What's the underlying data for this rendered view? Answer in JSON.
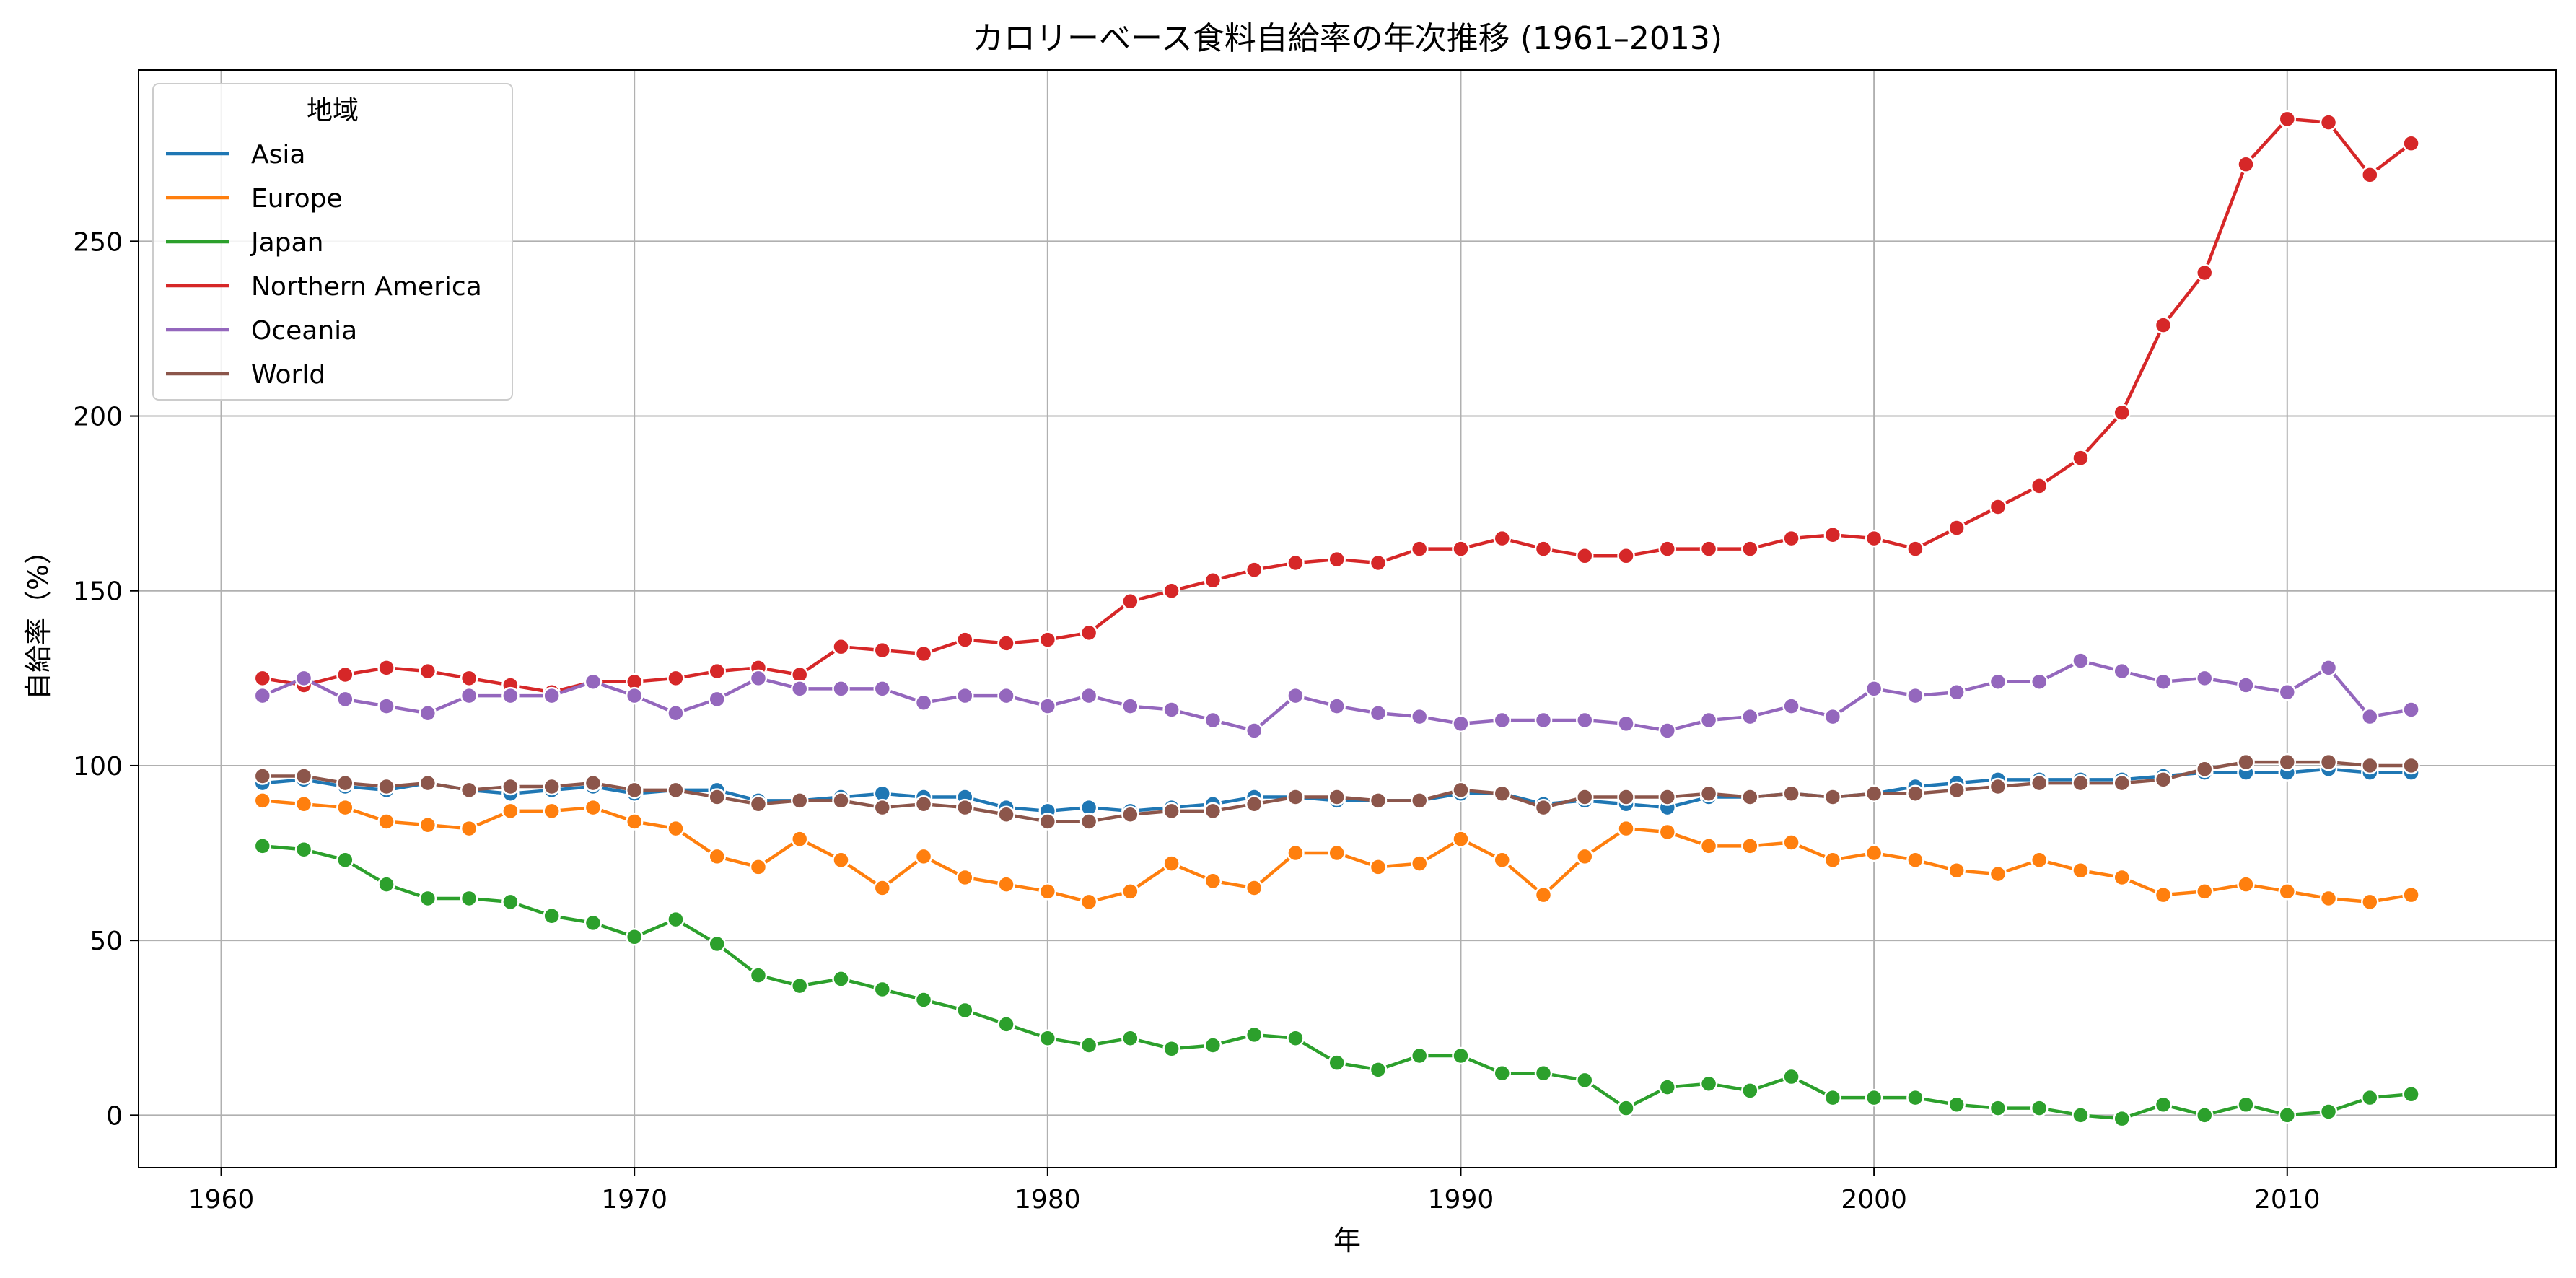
{
  "chart_data": {
    "type": "line",
    "title": "カロリーベース食料自給率の年次推移 (1961–2013)",
    "xlabel": "年",
    "ylabel": "自給率（%）",
    "xlim": [
      1958,
      2016.5
    ],
    "ylim": [
      -15,
      299
    ],
    "xticks": [
      1960,
      1970,
      1980,
      1990,
      2000,
      2010
    ],
    "yticks": [
      0,
      50,
      100,
      150,
      200,
      250
    ],
    "grid": true,
    "legend": {
      "title": "地域",
      "placement": "top-left"
    },
    "x": [
      1961,
      1962,
      1963,
      1964,
      1965,
      1966,
      1967,
      1968,
      1969,
      1970,
      1971,
      1972,
      1973,
      1974,
      1975,
      1976,
      1977,
      1978,
      1979,
      1980,
      1981,
      1982,
      1983,
      1984,
      1985,
      1986,
      1987,
      1988,
      1989,
      1990,
      1991,
      1992,
      1993,
      1994,
      1995,
      1996,
      1997,
      1998,
      1999,
      2000,
      2001,
      2002,
      2003,
      2004,
      2005,
      2006,
      2007,
      2008,
      2009,
      2010,
      2011,
      2012,
      2013
    ],
    "series": [
      {
        "name": "Asia",
        "color": "#1f77b4",
        "values": [
          95,
          96,
          94,
          93,
          95,
          93,
          92,
          93,
          94,
          92,
          93,
          93,
          90,
          90,
          91,
          92,
          91,
          91,
          88,
          87,
          88,
          87,
          88,
          89,
          91,
          91,
          90,
          90,
          90,
          92,
          92,
          89,
          90,
          89,
          88,
          91,
          91,
          92,
          91,
          92,
          94,
          95,
          96,
          96,
          96,
          96,
          97,
          98,
          98,
          98,
          99,
          98,
          98
        ]
      },
      {
        "name": "Europe",
        "color": "#ff7f0e",
        "values": [
          90,
          89,
          88,
          84,
          83,
          82,
          87,
          87,
          88,
          84,
          82,
          74,
          71,
          79,
          73,
          65,
          74,
          68,
          66,
          64,
          61,
          64,
          72,
          67,
          65,
          75,
          75,
          71,
          72,
          79,
          73,
          63,
          74,
          82,
          81,
          77,
          77,
          78,
          73,
          75,
          73,
          70,
          69,
          73,
          70,
          68,
          63,
          64,
          66,
          64,
          62,
          61,
          63
        ]
      },
      {
        "name": "Japan",
        "color": "#2ca02c",
        "values": [
          77,
          76,
          73,
          66,
          62,
          62,
          61,
          57,
          55,
          51,
          56,
          49,
          40,
          37,
          39,
          36,
          33,
          30,
          26,
          22,
          20,
          22,
          19,
          20,
          23,
          22,
          15,
          13,
          17,
          17,
          12,
          12,
          10,
          2,
          8,
          9,
          7,
          11,
          5,
          5,
          5,
          3,
          2,
          2,
          0,
          -1,
          3,
          0,
          3,
          0,
          1,
          5,
          6
        ]
      },
      {
        "name": "Northern America",
        "color": "#d62728",
        "values": [
          125,
          123,
          126,
          128,
          127,
          125,
          123,
          121,
          124,
          124,
          125,
          127,
          128,
          126,
          134,
          133,
          132,
          136,
          135,
          136,
          138,
          147,
          150,
          153,
          156,
          158,
          159,
          158,
          162,
          162,
          165,
          162,
          160,
          160,
          162,
          162,
          162,
          165,
          166,
          165,
          162,
          168,
          174,
          180,
          188,
          201,
          226,
          241,
          272,
          285,
          284,
          269,
          278
        ]
      },
      {
        "name": "Oceania",
        "color": "#9467bd",
        "values": [
          120,
          125,
          119,
          117,
          115,
          120,
          120,
          120,
          124,
          120,
          115,
          119,
          125,
          122,
          122,
          122,
          118,
          120,
          120,
          117,
          120,
          117,
          116,
          113,
          110,
          120,
          117,
          115,
          114,
          112,
          113,
          113,
          113,
          112,
          110,
          113,
          114,
          117,
          114,
          122,
          120,
          121,
          124,
          124,
          130,
          127,
          124,
          125,
          123,
          121,
          128,
          114,
          116
        ]
      },
      {
        "name": "World",
        "color": "#8c564b",
        "values": [
          97,
          97,
          95,
          94,
          95,
          93,
          94,
          94,
          95,
          93,
          93,
          91,
          89,
          90,
          90,
          88,
          89,
          88,
          86,
          84,
          84,
          86,
          87,
          87,
          89,
          91,
          91,
          90,
          90,
          93,
          92,
          88,
          91,
          91,
          91,
          92,
          91,
          92,
          91,
          92,
          92,
          93,
          94,
          95,
          95,
          95,
          96,
          99,
          101,
          101,
          101,
          100,
          100
        ]
      }
    ]
  }
}
